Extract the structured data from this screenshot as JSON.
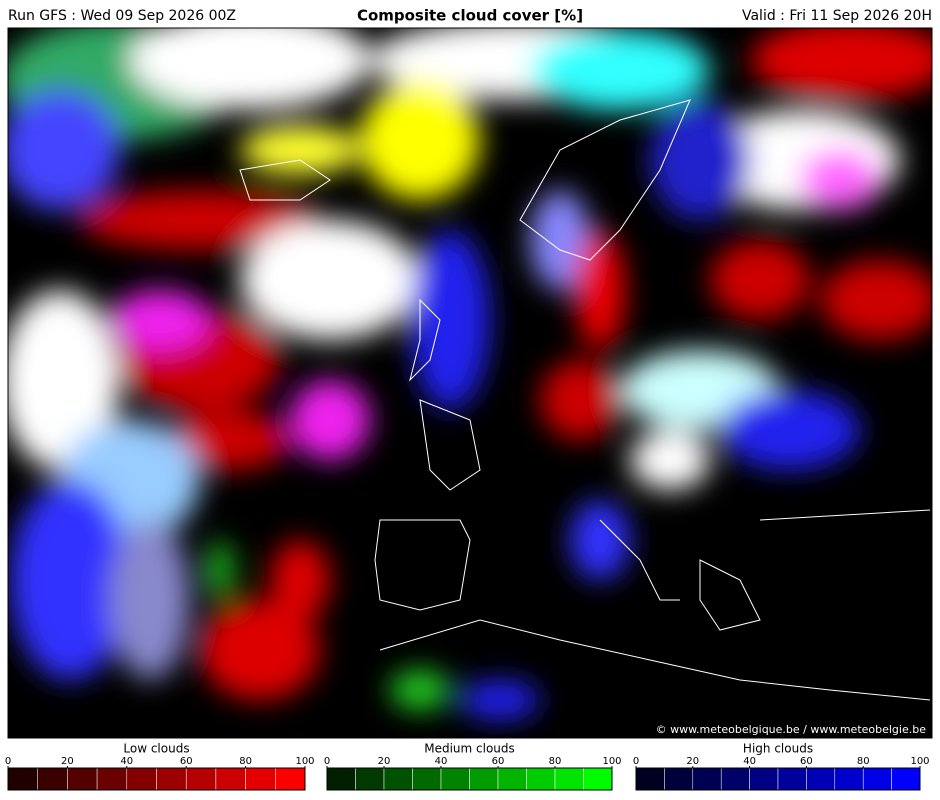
{
  "header": {
    "run": "Run GFS : Wed 09 Sep 2026 00Z",
    "title": "Composite cloud cover [%]",
    "valid": "Valid : Fri 11 Sep 2026 20H"
  },
  "credit": "© www.meteobelgique.be / www.meteobelgie.be",
  "legends": [
    {
      "title": "Low clouds",
      "ticks": [
        0,
        20,
        40,
        60,
        80,
        100
      ],
      "colors": [
        "#200000",
        "#3a0000",
        "#520000",
        "#6a0000",
        "#840000",
        "#9c0000",
        "#b40000",
        "#cc0000",
        "#e40000",
        "#fc0000"
      ]
    },
    {
      "title": "Medium clouds",
      "ticks": [
        0,
        20,
        40,
        60,
        80,
        100
      ],
      "colors": [
        "#002000",
        "#003a00",
        "#005200",
        "#006a00",
        "#008400",
        "#009c00",
        "#00b400",
        "#00cc00",
        "#00e400",
        "#00fc00"
      ]
    },
    {
      "title": "High clouds",
      "ticks": [
        0,
        20,
        40,
        60,
        80,
        100
      ],
      "colors": [
        "#000020",
        "#00003a",
        "#000052",
        "#00006a",
        "#000084",
        "#00009c",
        "#0000b4",
        "#0000cc",
        "#0000e4",
        "#0000fc"
      ]
    }
  ]
}
